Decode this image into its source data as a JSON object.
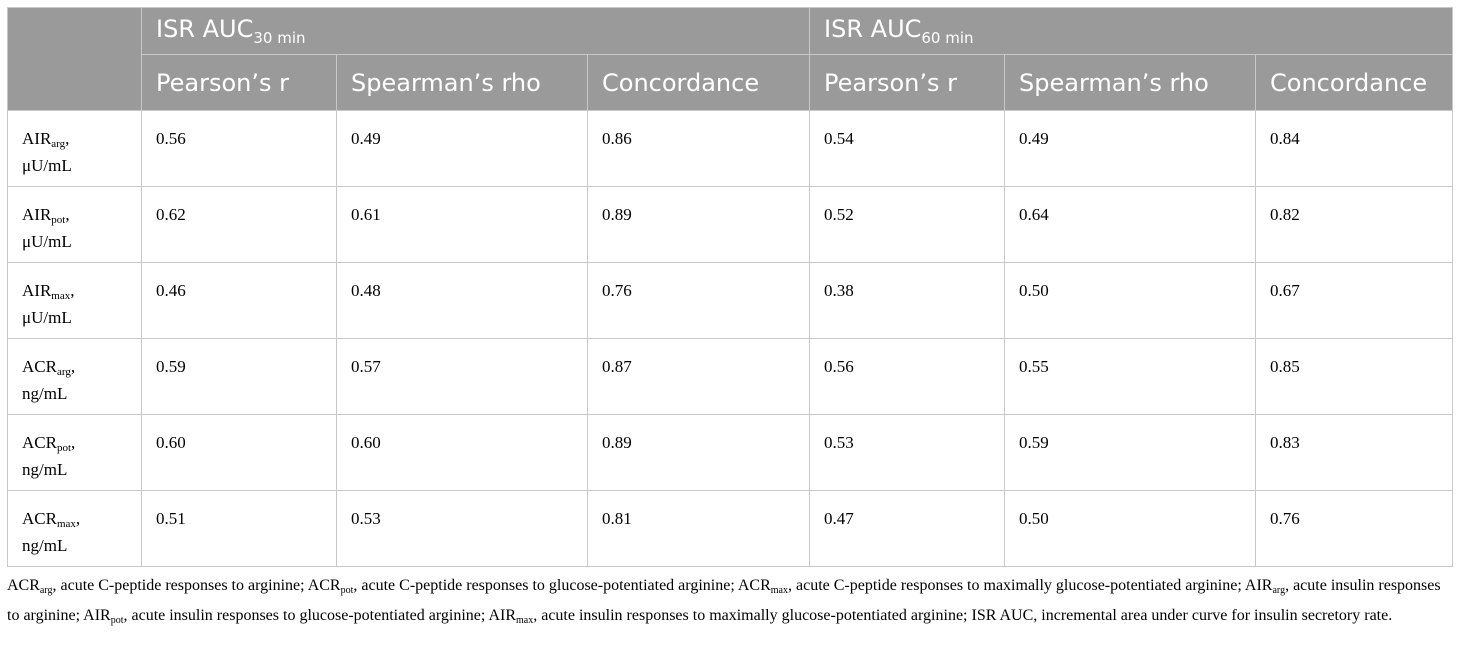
{
  "header": {
    "group1": {
      "main": "ISR AUC",
      "sub": "30 min"
    },
    "group2": {
      "main": "ISR AUC",
      "sub": "60 min"
    },
    "columns": [
      "Pearson’s r",
      "Spearman’s rho",
      "Concordance",
      "Pearson’s r",
      "Spearman’s rho",
      "Concordance"
    ]
  },
  "rows": [
    {
      "label_main": "AIR",
      "label_sub": "arg",
      "unit": "μU/mL",
      "values": [
        "0.56",
        "0.49",
        "0.86",
        "0.54",
        "0.49",
        "0.84"
      ]
    },
    {
      "label_main": "AIR",
      "label_sub": "pot",
      "unit": "μU/mL",
      "values": [
        "0.62",
        "0.61",
        "0.89",
        "0.52",
        "0.64",
        "0.82"
      ]
    },
    {
      "label_main": "AIR",
      "label_sub": "max",
      "unit": "μU/mL",
      "values": [
        "0.46",
        "0.48",
        "0.76",
        "0.38",
        "0.50",
        "0.67"
      ]
    },
    {
      "label_main": "ACR",
      "label_sub": "arg",
      "unit": "ng/mL",
      "values": [
        "0.59",
        "0.57",
        "0.87",
        "0.56",
        "0.55",
        "0.85"
      ]
    },
    {
      "label_main": "ACR",
      "label_sub": "pot",
      "unit": "ng/mL",
      "values": [
        "0.60",
        "0.60",
        "0.89",
        "0.53",
        "0.59",
        "0.83"
      ]
    },
    {
      "label_main": "ACR",
      "label_sub": "max",
      "unit": "ng/mL",
      "values": [
        "0.51",
        "0.53",
        "0.81",
        "0.47",
        "0.50",
        "0.76"
      ]
    }
  ],
  "footnote": {
    "items": [
      {
        "main": "ACR",
        "sub": "arg",
        "text": ", acute C-peptide responses to arginine; "
      },
      {
        "main": "ACR",
        "sub": "pot",
        "text": ", acute C-peptide responses to glucose-potentiated arginine; "
      },
      {
        "main": "ACR",
        "sub": "max",
        "text": ", acute C-peptide responses to maximally glucose-potentiated arginine; "
      },
      {
        "main": "AIR",
        "sub": "arg",
        "text": ", acute insulin responses to arginine; "
      },
      {
        "main": "AIR",
        "sub": "pot",
        "text": ", acute insulin responses to glucose-potentiated arginine; "
      },
      {
        "main": "AIR",
        "sub": "max",
        "text": ", acute insulin responses to maximally glucose-potentiated arginine; "
      }
    ],
    "tail": "ISR AUC, incremental area under curve for insulin secretory rate."
  }
}
